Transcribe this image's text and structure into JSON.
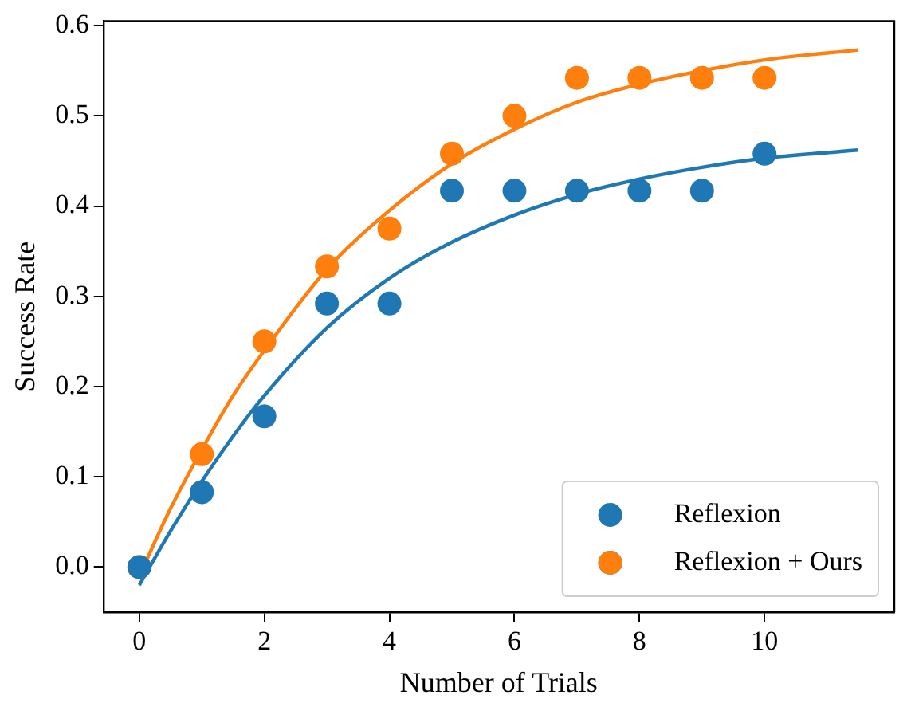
{
  "chart_data": {
    "type": "scatter",
    "xlabel": "Number of Trials",
    "ylabel": "Success Rate",
    "xlim": [
      -0.575,
      12.075
    ],
    "ylim": [
      -0.05,
      0.605
    ],
    "xticks": [
      0,
      2,
      4,
      6,
      8,
      10
    ],
    "yticks": [
      {
        "value": 0,
        "label": "0.0"
      },
      0.1,
      0.2,
      0.3,
      0.4,
      0.5,
      0.6
    ],
    "grid": false,
    "legend": "bottom right",
    "marker": "circle",
    "series": [
      {
        "name": "Reflexion",
        "color": "#1f77b4",
        "x": [
          0,
          1,
          2,
          3,
          4,
          5,
          6,
          7,
          8,
          9,
          10
        ],
        "values": [
          0,
          0.083,
          0.167,
          0.292,
          0.292,
          0.417,
          0.417,
          0.417,
          0.417,
          0.417,
          0.458
        ]
      },
      {
        "name": "Reflexion + Ours",
        "color": "#ff7f0e",
        "x": [
          0,
          1,
          2,
          3,
          4,
          5,
          6,
          7,
          8,
          9,
          10
        ],
        "values": [
          0,
          0.125,
          0.25,
          0.333,
          0.375,
          0.458,
          0.5,
          0.542,
          0.542,
          0.542,
          0.542
        ]
      },
      {
        "type": "line",
        "color": "#1f77b4",
        "marker": "none",
        "x": [
          0,
          0.5,
          1,
          1.5,
          2,
          3,
          4,
          5,
          6,
          7,
          8,
          9,
          10,
          11.5
        ],
        "values": [
          -0.02,
          0.04,
          0.095,
          0.145,
          0.19,
          0.265,
          0.32,
          0.36,
          0.39,
          0.413,
          0.43,
          0.443,
          0.453,
          0.462
        ]
      },
      {
        "type": "line",
        "color": "#ff7f0e",
        "marker": "none",
        "x": [
          0,
          0.5,
          1,
          1.5,
          2,
          3,
          4,
          5,
          6,
          7,
          8,
          9,
          10,
          11.5
        ],
        "values": [
          -0.01,
          0.065,
          0.13,
          0.19,
          0.24,
          0.33,
          0.395,
          0.447,
          0.485,
          0.515,
          0.535,
          0.55,
          0.562,
          0.573
        ]
      }
    ]
  }
}
